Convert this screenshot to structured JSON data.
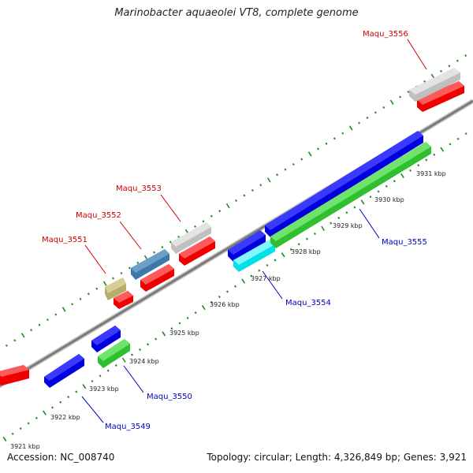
{
  "title": "Marinobacter aquaeolei VT8, complete genome",
  "footer": {
    "accession": "Accession: NC_008740",
    "summary": "Topology: circular; Length: 4,326,849 bp; Genes: 3,921"
  },
  "colors": {
    "backbone": "#888888",
    "dots": "#1f8a1f",
    "upper_label": "#cc0000",
    "lower_label": "#0000bb"
  },
  "ticks": [
    "3921 kbp",
    "3922 kbp",
    "3923 kbp",
    "3924 kbp",
    "3925 kbp",
    "3926 kbp",
    "3927 kbp",
    "3928 kbp",
    "3929 kbp",
    "3930 kbp",
    "3931 kbp"
  ],
  "upper_labels": [
    "Maqu_3551",
    "Maqu_3552",
    "Maqu_3553",
    "Maqu_3556"
  ],
  "lower_labels": [
    "Maqu_3549",
    "Maqu_3550",
    "Maqu_3554",
    "Maqu_3555"
  ]
}
